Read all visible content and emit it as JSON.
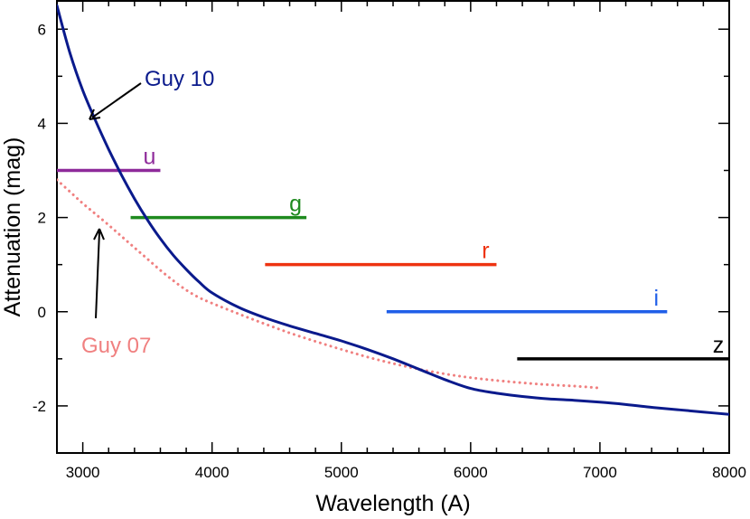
{
  "chart_data": {
    "type": "line",
    "xlabel": "Wavelength (A)",
    "ylabel": "Attenuation (mag)",
    "xlim": [
      2800,
      8000
    ],
    "ylim": [
      -3,
      6.6
    ],
    "x_ticks": [
      3000,
      4000,
      5000,
      6000,
      7000,
      8000
    ],
    "x_tick_labels": [
      "3000",
      "4000",
      "5000",
      "6000",
      "7000",
      "8000"
    ],
    "y_ticks": [
      -2,
      0,
      2,
      4,
      6
    ],
    "y_tick_labels": [
      "-2",
      "0",
      "2",
      "4",
      "6"
    ],
    "grid": false,
    "series": [
      {
        "name": "Guy 10",
        "color": "#0a1a8c",
        "style": "solid",
        "x": [
          2800,
          2900,
          3000,
          3100,
          3200,
          3300,
          3400,
          3500,
          3600,
          3700,
          3800,
          3900,
          4000,
          4200,
          4400,
          4600,
          4800,
          5000,
          5200,
          5400,
          5600,
          5800,
          6000,
          6200,
          6400,
          6600,
          6800,
          7000,
          7200,
          7400,
          7600,
          7800,
          8000
        ],
        "values": [
          6.5,
          5.5,
          4.7,
          4.05,
          3.45,
          2.9,
          2.4,
          1.95,
          1.55,
          1.2,
          0.9,
          0.63,
          0.4,
          0.1,
          -0.12,
          -0.3,
          -0.46,
          -0.62,
          -0.8,
          -1.0,
          -1.22,
          -1.44,
          -1.63,
          -1.73,
          -1.8,
          -1.85,
          -1.88,
          -1.92,
          -1.97,
          -2.03,
          -2.08,
          -2.13,
          -2.18
        ]
      },
      {
        "name": "Guy 07",
        "color": "#f08080",
        "style": "dotted",
        "x": [
          2800,
          2900,
          3000,
          3100,
          3200,
          3300,
          3400,
          3500,
          3600,
          3700,
          3800,
          3900,
          4000,
          4200,
          4400,
          4600,
          4800,
          5000,
          5200,
          5400,
          5600,
          5800,
          6000,
          6200,
          6400,
          6600,
          6800,
          7000
        ],
        "values": [
          2.8,
          2.55,
          2.3,
          2.07,
          1.84,
          1.6,
          1.36,
          1.12,
          0.88,
          0.66,
          0.46,
          0.3,
          0.18,
          -0.04,
          -0.25,
          -0.45,
          -0.63,
          -0.8,
          -0.96,
          -1.1,
          -1.22,
          -1.32,
          -1.4,
          -1.46,
          -1.51,
          -1.55,
          -1.58,
          -1.62
        ]
      }
    ],
    "bands": [
      {
        "name": "u",
        "color": "#8e2a9a",
        "x_start": 2800,
        "x_end": 3600,
        "value": 3.0
      },
      {
        "name": "g",
        "color": "#1e8a1e",
        "x_start": 3370,
        "x_end": 4730,
        "value": 2.0
      },
      {
        "name": "r",
        "color": "#ee3311",
        "x_start": 4410,
        "x_end": 6200,
        "value": 1.0
      },
      {
        "name": "i",
        "color": "#1f5ee8",
        "x_start": 5350,
        "x_end": 7520,
        "value": 0.0
      },
      {
        "name": "z",
        "color": "#000000",
        "x_start": 6360,
        "x_end": 8000,
        "value": -1.0
      }
    ],
    "annotations": [
      {
        "text": "Guy 10",
        "color": "#0a1a8c"
      },
      {
        "text": "Guy 07",
        "color": "#f08080"
      }
    ]
  }
}
